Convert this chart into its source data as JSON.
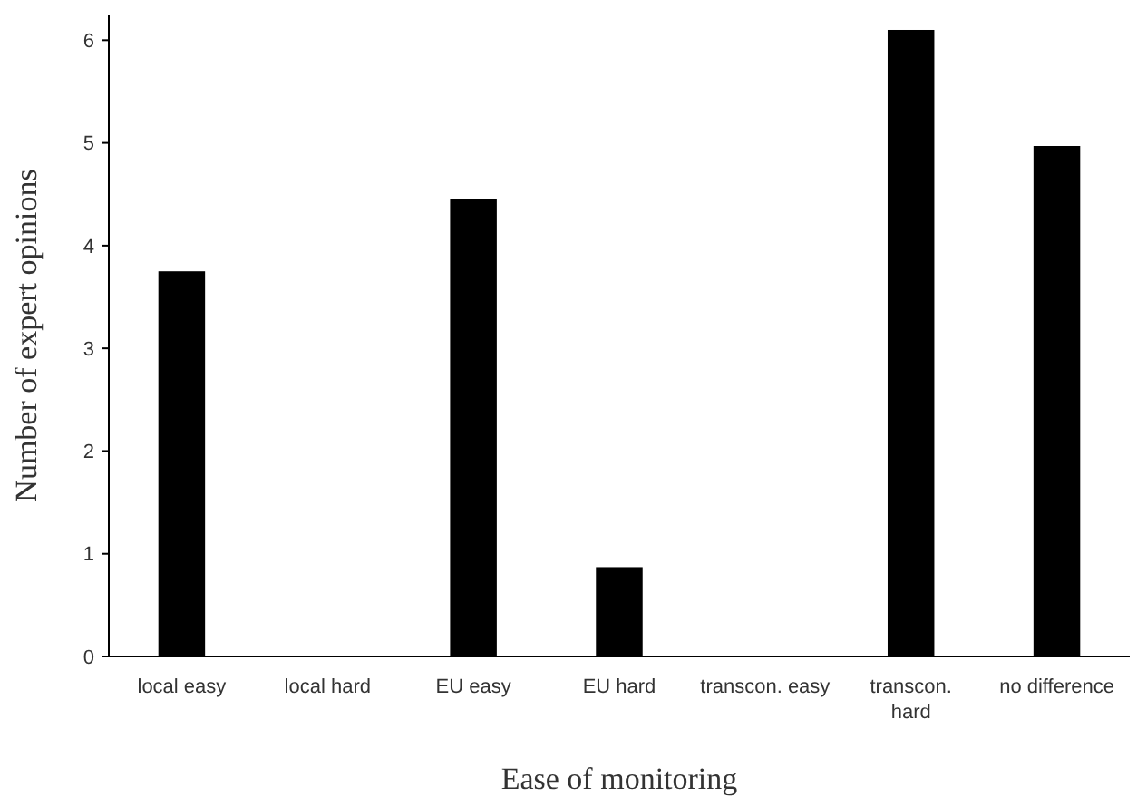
{
  "chart_data": {
    "type": "bar",
    "xlabel": "Ease of monitoring",
    "ylabel": "Number of expert opinions",
    "categories": [
      "local easy",
      "local hard",
      "EU easy",
      "EU hard",
      "transcon. easy",
      "transcon.\nhard",
      "no difference"
    ],
    "values": [
      3.75,
      0,
      4.45,
      0.87,
      0,
      6.1,
      4.97
    ],
    "color": "#000000",
    "ylim": [
      0,
      6.25
    ],
    "yticks": [
      0,
      1,
      2,
      3,
      4,
      5,
      6
    ],
    "grid": false
  }
}
